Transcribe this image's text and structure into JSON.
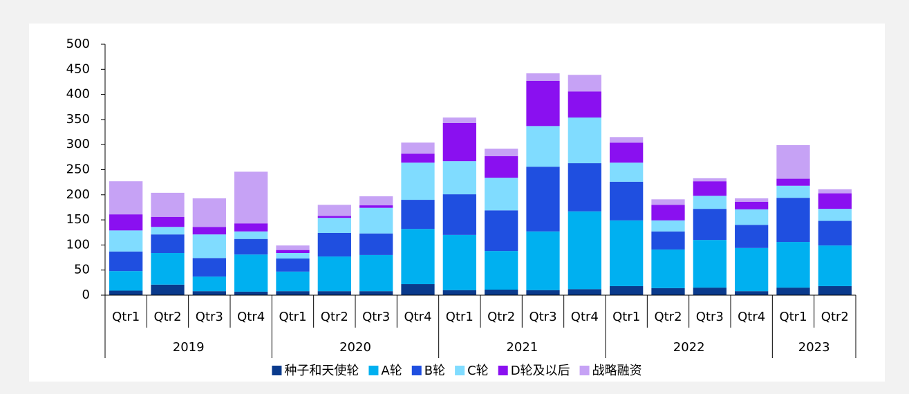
{
  "chart_data": {
    "type": "stacked_bar",
    "groups": [
      {
        "label": "2019",
        "quarters": [
          "Qtr1",
          "Qtr2",
          "Qtr3",
          "Qtr4"
        ]
      },
      {
        "label": "2020",
        "quarters": [
          "Qtr1",
          "Qtr2",
          "Qtr3",
          "Qtr4"
        ]
      },
      {
        "label": "2021",
        "quarters": [
          "Qtr1",
          "Qtr2",
          "Qtr3",
          "Qtr4"
        ]
      },
      {
        "label": "2022",
        "quarters": [
          "Qtr1",
          "Qtr2",
          "Qtr3",
          "Qtr4"
        ]
      },
      {
        "label": "2023",
        "quarters": [
          "Qtr1",
          "Qtr2"
        ]
      }
    ],
    "series": [
      {
        "name": "种子和天使轮",
        "color": "#0a3a8c",
        "values": [
          9,
          21,
          8,
          7,
          8,
          8,
          8,
          22,
          10,
          11,
          10,
          12,
          18,
          14,
          15,
          8,
          15,
          18
        ]
      },
      {
        "name": "A轮",
        "color": "#00b0f0",
        "values": [
          39,
          63,
          29,
          74,
          39,
          69,
          72,
          110,
          110,
          77,
          117,
          155,
          131,
          77,
          95,
          86,
          91,
          81
        ]
      },
      {
        "name": "B轮",
        "color": "#1f4fe0",
        "values": [
          39,
          37,
          37,
          31,
          26,
          47,
          43,
          58,
          81,
          81,
          129,
          96,
          77,
          36,
          62,
          46,
          88,
          49
        ]
      },
      {
        "name": "C轮",
        "color": "#80dcff",
        "values": [
          42,
          15,
          47,
          15,
          11,
          30,
          51,
          74,
          66,
          65,
          81,
          91,
          38,
          22,
          26,
          31,
          24,
          24
        ]
      },
      {
        "name": "D轮及以后",
        "color": "#8a10f0",
        "values": [
          32,
          20,
          15,
          16,
          6,
          4,
          5,
          18,
          76,
          43,
          90,
          52,
          40,
          31,
          29,
          15,
          14,
          31
        ]
      },
      {
        "name": "战略融资",
        "color": "#c6a2f5",
        "values": [
          66,
          48,
          57,
          103,
          9,
          22,
          18,
          22,
          11,
          15,
          15,
          33,
          11,
          11,
          6,
          7,
          67,
          8
        ]
      }
    ],
    "ylim": [
      0,
      500
    ],
    "yticks": [
      0,
      50,
      100,
      150,
      200,
      250,
      300,
      350,
      400,
      450,
      500
    ],
    "legend": "bottom"
  }
}
